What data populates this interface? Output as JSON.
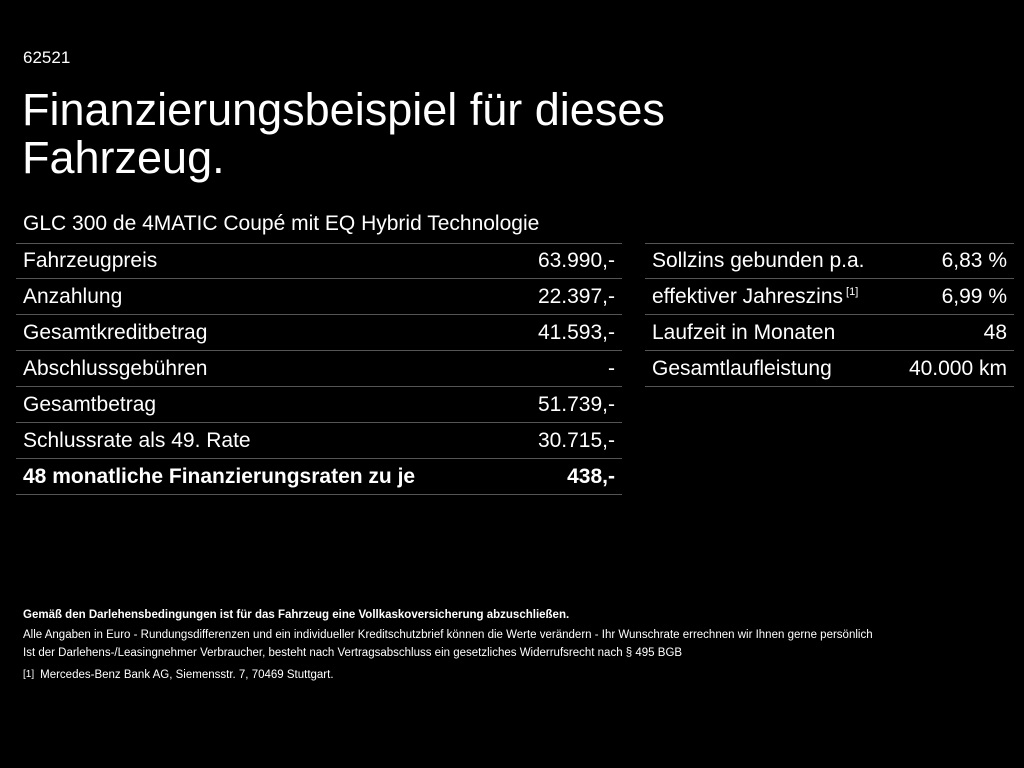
{
  "header": {
    "page_id": "62521",
    "title": "Finanzierungsbeispiel für dieses Fahrzeug.",
    "model": "GLC 300 de 4MATIC Coupé mit EQ Hybrid Technologie"
  },
  "financing_left": [
    {
      "label": "Fahrzeugpreis",
      "value": "63.990,-"
    },
    {
      "label": "Anzahlung",
      "value": "22.397,-"
    },
    {
      "label": "Gesamtkreditbetrag",
      "value": "41.593,-"
    },
    {
      "label": "Abschlussgebühren",
      "value": "-"
    },
    {
      "label": "Gesamtbetrag",
      "value": "51.739,-"
    },
    {
      "label": "Schlussrate als 49. Rate",
      "value": "30.715,-"
    },
    {
      "label": "48 monatliche Finanzierungsraten zu je",
      "value": "438,-"
    }
  ],
  "financing_right": [
    {
      "label": "Sollzins gebunden p.a.",
      "value": "6,83 %"
    },
    {
      "label": "effektiver Jahreszins",
      "footnote": "[1]",
      "value": "6,99 %"
    },
    {
      "label": "Laufzeit in Monaten",
      "value": "48"
    },
    {
      "label": "Gesamtlaufleistung",
      "value": "40.000 km"
    }
  ],
  "footnotes": {
    "insurance": "Gemäß den Darlehensbedingungen ist für das Fahrzeug eine Vollkaskoversicherung abzuschließen.",
    "disclaimer": "Alle Angaben in Euro - Rundungsdifferenzen und ein individueller Kreditschutzbrief können die Werte verändern - Ihr Wunschrate errechnen wir Ihnen gerne persönlich",
    "withdrawal": "Ist der Darlehens-/Leasingnehmer Verbraucher, besteht nach Vertragsabschluss ein gesetzliches Widerrufsrecht nach § 495 BGB",
    "ref_marker": "[1]",
    "ref_text": "Mercedes-Benz Bank AG, Siemensstr. 7, 70469 Stuttgart."
  }
}
